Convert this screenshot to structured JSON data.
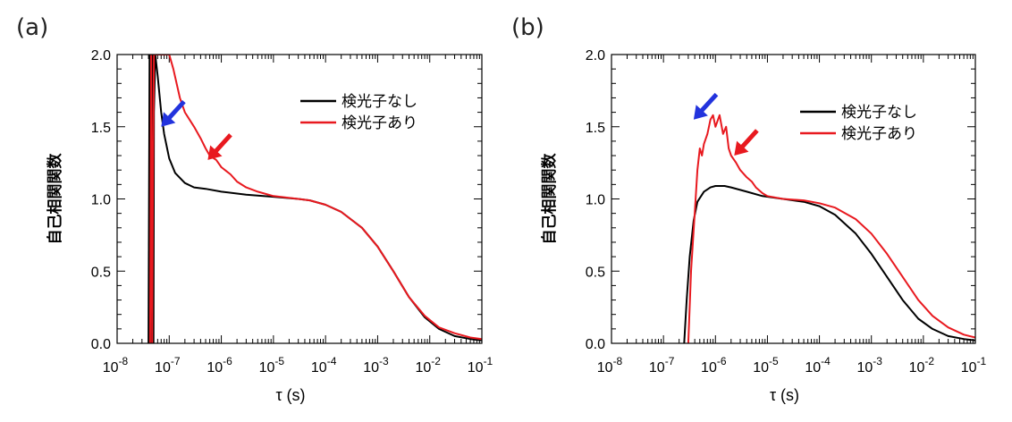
{
  "figure": {
    "panels": [
      "(a)",
      "(b)"
    ]
  },
  "chart_data": [
    {
      "panel": "(a)",
      "type": "line",
      "xscale": "log",
      "xlim": [
        1e-08,
        0.1
      ],
      "ylim": [
        0,
        2
      ],
      "xlabel": "τ (s)",
      "ylabel": "自己相関関数",
      "xtick_labels": [
        {
          "base": "10",
          "exp": "-8"
        },
        {
          "base": "10",
          "exp": "-7"
        },
        {
          "base": "10",
          "exp": "-6"
        },
        {
          "base": "10",
          "exp": "-5"
        },
        {
          "base": "10",
          "exp": "-4"
        },
        {
          "base": "10",
          "exp": "-3"
        },
        {
          "base": "10",
          "exp": "-2"
        },
        {
          "base": "10",
          "exp": "-1"
        }
      ],
      "ytick_labels": [
        "0.0",
        "0.5",
        "1.0",
        "1.5",
        "2.0"
      ],
      "legend_position": "top-right",
      "series": [
        {
          "name": "検光子なし",
          "color": "#000000",
          "points": [
            [
              4e-08,
              0
            ],
            [
              4.2e-08,
              2.0
            ],
            [
              4.4e-08,
              0
            ],
            [
              4.8e-08,
              2.0
            ],
            [
              5e-08,
              0.0
            ],
            [
              5.1e-08,
              1.6
            ],
            [
              5.4e-08,
              2.0
            ],
            [
              6e-08,
              1.85
            ],
            [
              7e-08,
              1.6
            ],
            [
              8e-08,
              1.45
            ],
            [
              1e-07,
              1.28
            ],
            [
              1.3e-07,
              1.18
            ],
            [
              2e-07,
              1.11
            ],
            [
              3e-07,
              1.08
            ],
            [
              5e-07,
              1.07
            ],
            [
              1e-06,
              1.05
            ],
            [
              3e-06,
              1.03
            ],
            [
              1e-05,
              1.015
            ],
            [
              3e-05,
              1.0
            ],
            [
              5e-05,
              0.99
            ],
            [
              0.0001,
              0.96
            ],
            [
              0.0002,
              0.91
            ],
            [
              0.0005,
              0.8
            ],
            [
              0.001,
              0.67
            ],
            [
              0.002,
              0.5
            ],
            [
              0.004,
              0.32
            ],
            [
              0.008,
              0.18
            ],
            [
              0.015,
              0.1
            ],
            [
              0.03,
              0.05
            ],
            [
              0.06,
              0.03
            ],
            [
              0.1,
              0.02
            ]
          ]
        },
        {
          "name": "検光子あり",
          "color": "#e8191f",
          "points": [
            [
              4.3e-08,
              0
            ],
            [
              4.5e-08,
              2.0
            ],
            [
              4.7e-08,
              0
            ],
            [
              4.9e-08,
              1.2
            ],
            [
              5.1e-08,
              2.0
            ],
            [
              1e-07,
              2.0
            ],
            [
              1.2e-07,
              1.9
            ],
            [
              1.6e-07,
              1.7
            ],
            [
              2e-07,
              1.6
            ],
            [
              3e-07,
              1.5
            ],
            [
              4e-07,
              1.42
            ],
            [
              5e-07,
              1.35
            ],
            [
              6e-07,
              1.3
            ],
            [
              8e-07,
              1.27
            ],
            [
              1e-06,
              1.22
            ],
            [
              1.5e-06,
              1.17
            ],
            [
              2e-06,
              1.12
            ],
            [
              3e-06,
              1.08
            ],
            [
              5e-06,
              1.05
            ],
            [
              1e-05,
              1.02
            ],
            [
              3e-05,
              1.0
            ],
            [
              5e-05,
              0.99
            ],
            [
              0.0001,
              0.96
            ],
            [
              0.0002,
              0.91
            ],
            [
              0.0005,
              0.8
            ],
            [
              0.001,
              0.67
            ],
            [
              0.002,
              0.5
            ],
            [
              0.004,
              0.32
            ],
            [
              0.008,
              0.19
            ],
            [
              0.015,
              0.11
            ],
            [
              0.03,
              0.07
            ],
            [
              0.06,
              0.04
            ],
            [
              0.1,
              0.03
            ]
          ]
        }
      ],
      "annotations": [
        {
          "type": "arrow",
          "color": "#2233dd",
          "target": [
            7e-08,
            1.5
          ]
        },
        {
          "type": "arrow",
          "color": "#e8191f",
          "target": [
            5.5e-07,
            1.27
          ]
        }
      ]
    },
    {
      "panel": "(b)",
      "type": "line",
      "xscale": "log",
      "xlim": [
        1e-08,
        0.1
      ],
      "ylim": [
        0,
        2
      ],
      "xlabel": "τ (s)",
      "ylabel": "自己相関関数",
      "xtick_labels": [
        {
          "base": "10",
          "exp": "-8"
        },
        {
          "base": "10",
          "exp": "-7"
        },
        {
          "base": "10",
          "exp": "-6"
        },
        {
          "base": "10",
          "exp": "-5"
        },
        {
          "base": "10",
          "exp": "-4"
        },
        {
          "base": "10",
          "exp": "-3"
        },
        {
          "base": "10",
          "exp": "-2"
        },
        {
          "base": "10",
          "exp": "-1"
        }
      ],
      "ytick_labels": [
        "0.0",
        "0.5",
        "1.0",
        "1.5",
        "2.0"
      ],
      "legend_position": "top-right",
      "series": [
        {
          "name": "検光子なし",
          "color": "#000000",
          "points": [
            [
              2.5e-07,
              0
            ],
            [
              2.8e-07,
              0.3
            ],
            [
              3.2e-07,
              0.6
            ],
            [
              3.8e-07,
              0.85
            ],
            [
              4.5e-07,
              0.98
            ],
            [
              6e-07,
              1.05
            ],
            [
              8e-07,
              1.08
            ],
            [
              1e-06,
              1.09
            ],
            [
              1.5e-06,
              1.09
            ],
            [
              2e-06,
              1.08
            ],
            [
              4e-06,
              1.05
            ],
            [
              8e-06,
              1.02
            ],
            [
              2e-05,
              1.0
            ],
            [
              5e-05,
              0.98
            ],
            [
              0.0001,
              0.95
            ],
            [
              0.0002,
              0.89
            ],
            [
              0.0005,
              0.76
            ],
            [
              0.001,
              0.62
            ],
            [
              0.002,
              0.46
            ],
            [
              0.004,
              0.3
            ],
            [
              0.008,
              0.17
            ],
            [
              0.015,
              0.1
            ],
            [
              0.03,
              0.05
            ],
            [
              0.06,
              0.03
            ],
            [
              0.1,
              0.02
            ]
          ]
        },
        {
          "name": "検光子あり",
          "color": "#e8191f",
          "points": [
            [
              3e-07,
              0
            ],
            [
              3.4e-07,
              0.5
            ],
            [
              4e-07,
              0.9
            ],
            [
              4.5e-07,
              1.2
            ],
            [
              5e-07,
              1.35
            ],
            [
              5.5e-07,
              1.3
            ],
            [
              6e-07,
              1.38
            ],
            [
              7e-07,
              1.45
            ],
            [
              8e-07,
              1.55
            ],
            [
              9e-07,
              1.58
            ],
            [
              1e-06,
              1.5
            ],
            [
              1.2e-06,
              1.58
            ],
            [
              1.4e-06,
              1.45
            ],
            [
              1.6e-06,
              1.5
            ],
            [
              1.8e-06,
              1.35
            ],
            [
              2e-06,
              1.3
            ],
            [
              2.5e-06,
              1.25
            ],
            [
              3e-06,
              1.2
            ],
            [
              4e-06,
              1.15
            ],
            [
              5e-06,
              1.12
            ],
            [
              6e-06,
              1.08
            ],
            [
              8e-06,
              1.04
            ],
            [
              1e-05,
              1.02
            ],
            [
              2e-05,
              1.0
            ],
            [
              5e-05,
              0.99
            ],
            [
              0.0001,
              0.97
            ],
            [
              0.0002,
              0.94
            ],
            [
              0.0005,
              0.86
            ],
            [
              0.001,
              0.76
            ],
            [
              0.002,
              0.62
            ],
            [
              0.004,
              0.46
            ],
            [
              0.008,
              0.3
            ],
            [
              0.015,
              0.19
            ],
            [
              0.03,
              0.11
            ],
            [
              0.06,
              0.06
            ],
            [
              0.1,
              0.04
            ]
          ]
        }
      ],
      "annotations": [
        {
          "type": "arrow",
          "color": "#2233dd",
          "target": [
            3.8e-07,
            1.55
          ]
        },
        {
          "type": "arrow",
          "color": "#e8191f",
          "target": [
            2.3e-06,
            1.3
          ]
        }
      ]
    }
  ]
}
